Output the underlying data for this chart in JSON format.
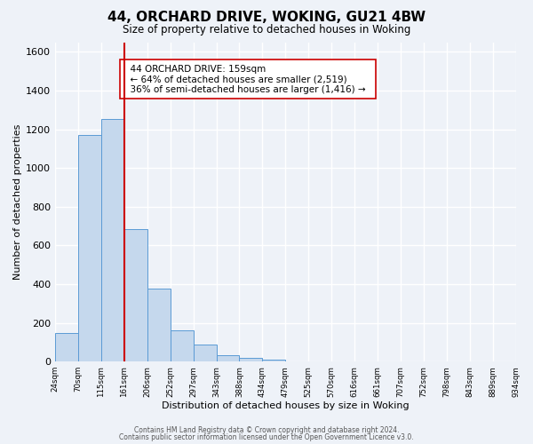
{
  "title": "44, ORCHARD DRIVE, WOKING, GU21 4BW",
  "subtitle": "Size of property relative to detached houses in Woking",
  "xlabel": "Distribution of detached houses by size in Woking",
  "ylabel": "Number of detached properties",
  "footer_line1": "Contains HM Land Registry data © Crown copyright and database right 2024.",
  "footer_line2": "Contains public sector information licensed under the Open Government Licence v3.0.",
  "bin_labels": [
    "24sqm",
    "70sqm",
    "115sqm",
    "161sqm",
    "206sqm",
    "252sqm",
    "297sqm",
    "343sqm",
    "388sqm",
    "434sqm",
    "479sqm",
    "525sqm",
    "570sqm",
    "616sqm",
    "661sqm",
    "707sqm",
    "752sqm",
    "798sqm",
    "843sqm",
    "889sqm",
    "934sqm"
  ],
  "bar_values": [
    150,
    1170,
    1255,
    685,
    375,
    160,
    90,
    35,
    20,
    10,
    0,
    0,
    0,
    0,
    0,
    0,
    0,
    0,
    0,
    0
  ],
  "bar_color": "#c5d8ed",
  "bar_edge_color": "#5b9bd5",
  "vline_x": 3,
  "vline_color": "#cc0000",
  "annotation_title": "44 ORCHARD DRIVE: 159sqm",
  "annotation_line1": "← 64% of detached houses are smaller (2,519)",
  "annotation_line2": "36% of semi-detached houses are larger (1,416) →",
  "annotation_box_color": "#ffffff",
  "annotation_box_edge": "#cc0000",
  "ylim": [
    0,
    1650
  ],
  "yticks": [
    0,
    200,
    400,
    600,
    800,
    1000,
    1200,
    1400,
    1600
  ],
  "bg_color": "#eef2f8",
  "plot_bg_color": "#eef2f8",
  "grid_color": "#ffffff"
}
